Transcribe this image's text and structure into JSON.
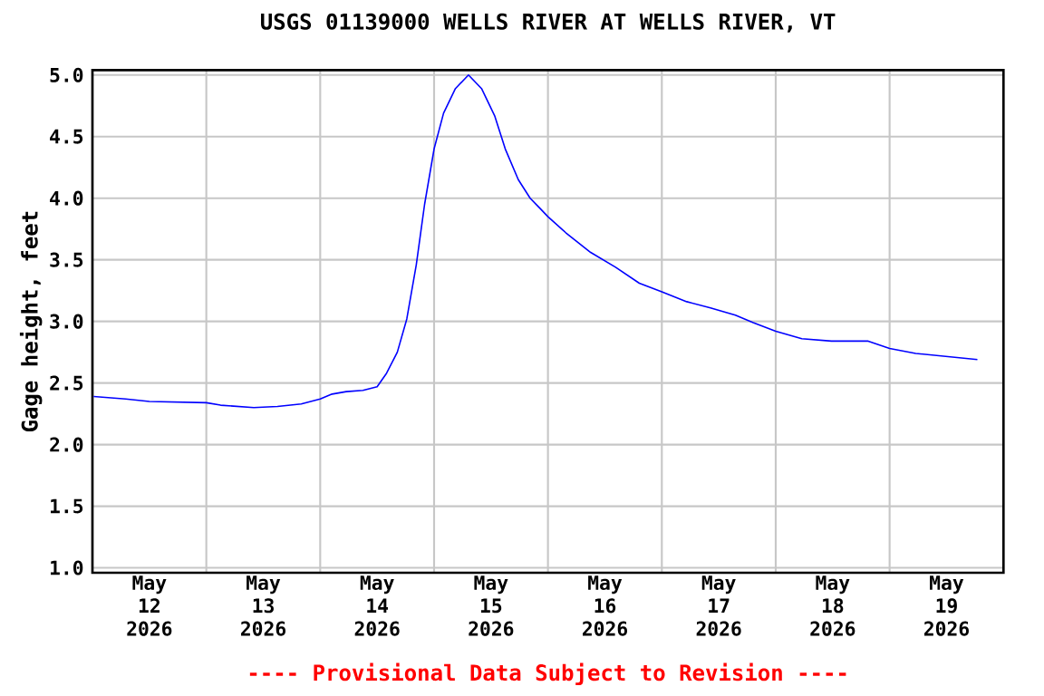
{
  "chart_data": {
    "type": "line",
    "title": "USGS 01139000 WELLS RIVER AT WELLS RIVER, VT",
    "ylabel": "Gage height, feet",
    "annotations": [
      "---- Provisional Data Subject to Revision ----"
    ],
    "xlim": [
      "2026-05-12",
      "2026-05-20"
    ],
    "xticks": [
      {
        "value": "2026-05-12T12:00",
        "label": "May 12 2026"
      },
      {
        "value": "2026-05-13T12:00",
        "label": "May 13 2026"
      },
      {
        "value": "2026-05-14T12:00",
        "label": "May 14 2026"
      },
      {
        "value": "2026-05-15T12:00",
        "label": "May 15 2026"
      },
      {
        "value": "2026-05-16T12:00",
        "label": "May 16 2026"
      },
      {
        "value": "2026-05-17T12:00",
        "label": "May 17 2026"
      },
      {
        "value": "2026-05-18T12:00",
        "label": "May 18 2026"
      },
      {
        "value": "2026-05-19T12:00",
        "label": "May 19 2026"
      },
      {
        "value": "2026-05-13",
        "label": null
      },
      {
        "value": "2026-05-14",
        "label": null
      },
      {
        "value": "2026-05-15",
        "label": null
      },
      {
        "value": "2026-05-16",
        "label": null
      },
      {
        "value": "2026-05-17",
        "label": null
      },
      {
        "value": "2026-05-18",
        "label": null
      },
      {
        "value": "2026-05-19",
        "label": null
      }
    ],
    "ylim": [
      0.96,
      5.04
    ],
    "yticks": [
      {
        "value": 1,
        "label": "1.0"
      },
      {
        "value": 1.5,
        "label": "1.5"
      },
      {
        "value": 2,
        "label": "2.0"
      },
      {
        "value": 2.5,
        "label": "2.5"
      },
      {
        "value": 3,
        "label": "3.0"
      },
      {
        "value": 3.5,
        "label": "3.5"
      },
      {
        "value": 4,
        "label": "4.0"
      },
      {
        "value": 4.5,
        "label": "4.5"
      },
      {
        "value": 5,
        "label": "5.0"
      }
    ],
    "grid": true,
    "marker": "none",
    "line_style": "solid",
    "x": [
      "2026-05-12T00:15",
      "2026-05-12T07:00",
      "2026-05-12T12:00",
      "2026-05-13T00:00",
      "2026-05-13T03:00",
      "2026-05-13T10:00",
      "2026-05-13T15:00",
      "2026-05-13T20:00",
      "2026-05-14T00:00",
      "2026-05-14T02:30",
      "2026-05-14T05:30",
      "2026-05-14T09:00",
      "2026-05-14T12:00",
      "2026-05-14T14:00",
      "2026-05-14T16:15",
      "2026-05-14T18:15",
      "2026-05-14T20:15",
      "2026-05-14T22:00",
      "2026-05-15T00:00",
      "2026-05-15T02:00",
      "2026-05-15T04:30",
      "2026-05-15T07:15",
      "2026-05-15T10:00",
      "2026-05-15T12:45",
      "2026-05-15T15:00",
      "2026-05-15T17:45",
      "2026-05-15T20:15",
      "2026-05-15T22:30",
      "2026-05-16T00:00",
      "2026-05-16T03:45",
      "2026-05-16T09:00",
      "2026-05-16T14:15",
      "2026-05-16T19:15",
      "2026-05-17T00:00",
      "2026-05-17T05:15",
      "2026-05-17T10:15",
      "2026-05-17T15:30",
      "2026-05-17T19:15",
      "2026-05-18T00:00",
      "2026-05-18T05:30",
      "2026-05-18T11:45",
      "2026-05-18T19:30",
      "2026-05-19T00:00",
      "2026-05-19T05:30",
      "2026-05-19T13:15",
      "2026-05-19T18:30"
    ],
    "series": [
      {
        "color": "#0000ff",
        "values": [
          2.39,
          2.37,
          2.35,
          2.34,
          2.32,
          2.3,
          2.31,
          2.33,
          2.37,
          2.41,
          2.43,
          2.44,
          2.47,
          2.58,
          2.75,
          3.02,
          3.46,
          3.95,
          4.4,
          4.69,
          4.89,
          5.0,
          4.89,
          4.67,
          4.4,
          4.15,
          4.0,
          3.91,
          3.85,
          3.72,
          3.56,
          3.44,
          3.31,
          3.24,
          3.16,
          3.11,
          3.05,
          2.99,
          2.92,
          2.86,
          2.84,
          2.84,
          2.78,
          2.74,
          2.71,
          2.69
        ]
      }
    ]
  }
}
